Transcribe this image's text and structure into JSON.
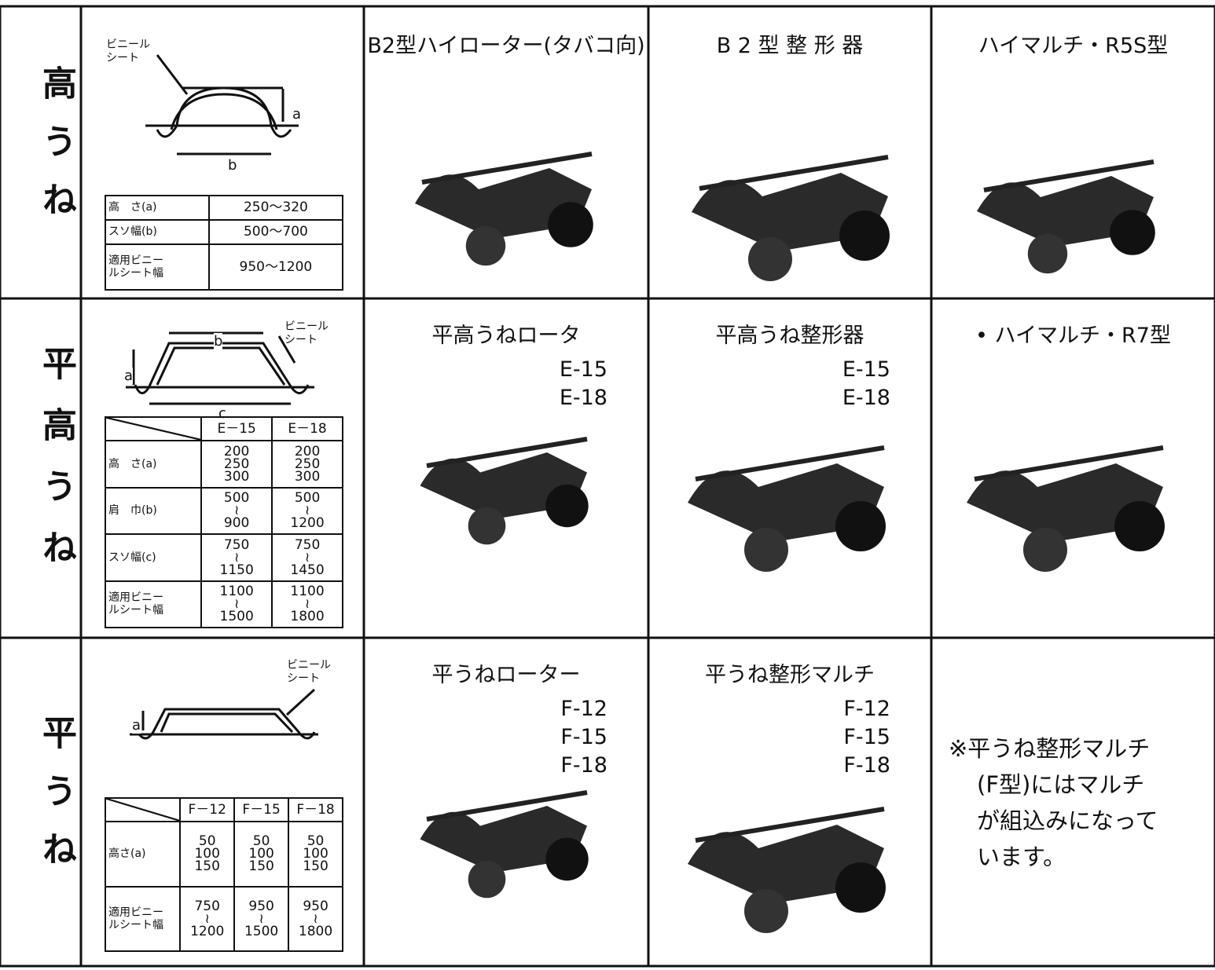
{
  "table": {
    "rows": [
      {
        "label": "高うね",
        "diagram": {
          "sheet_label": [
            "ビニール",
            "シート"
          ],
          "dimensions": [
            "a",
            "b"
          ]
        },
        "spec": {
          "rows": [
            {
              "item": [
                "高　さ(a)"
              ],
              "values": [
                [
                  "250〜320"
                ]
              ]
            },
            {
              "item": [
                "スソ幅(b)"
              ],
              "values": [
                [
                  "500〜700"
                ]
              ]
            },
            {
              "item": [
                "適用ビニー",
                "ルシート幅"
              ],
              "values": [
                [
                  "950〜1200"
                ]
              ]
            }
          ]
        },
        "machines": [
          {
            "name": "B2型ハイローター(タバコ向)"
          },
          {
            "name": "B 2 型 整 形 器"
          },
          {
            "name": "ハイマルチ・R5S型"
          }
        ]
      },
      {
        "label": "平高うね",
        "diagram": {
          "sheet_label": [
            "ビニール",
            "シート"
          ],
          "dimensions": [
            "a",
            "b",
            "c"
          ]
        },
        "spec": {
          "header": [
            "E－15",
            "E－18"
          ],
          "rows": [
            {
              "item": [
                "高　さ(a)"
              ],
              "values": [
                [
                  "200",
                  "250",
                  "300"
                ],
                [
                  "200",
                  "250",
                  "300"
                ]
              ]
            },
            {
              "item": [
                "肩　巾(b)"
              ],
              "values": [
                [
                  "500",
                  "≀",
                  "900"
                ],
                [
                  "500",
                  "≀",
                  "1200"
                ]
              ]
            },
            {
              "item": [
                "スソ幅(c)"
              ],
              "values": [
                [
                  "750",
                  "≀",
                  "1150"
                ],
                [
                  "750",
                  "≀",
                  "1450"
                ]
              ]
            },
            {
              "item": [
                "適用ビニー",
                "ルシート幅"
              ],
              "values": [
                [
                  "1100",
                  "≀",
                  "1500"
                ],
                [
                  "1100",
                  "≀",
                  "1800"
                ]
              ]
            }
          ]
        },
        "machines": [
          {
            "name": "平高うねロータ",
            "models": [
              "E-15",
              "E-18"
            ]
          },
          {
            "name": "平高うね整形器",
            "models": [
              "E-15",
              "E-18"
            ]
          },
          {
            "name": "• ハイマルチ・R7型"
          }
        ]
      },
      {
        "label": "平うね",
        "diagram": {
          "sheet_label": [
            "ビニール",
            "シート"
          ],
          "dimensions": [
            "a"
          ]
        },
        "spec": {
          "header": [
            "F－12",
            "F－15",
            "F－18"
          ],
          "rows": [
            {
              "item": [
                "高さ(a)"
              ],
              "values": [
                [
                  "50",
                  "100",
                  "150"
                ],
                [
                  "50",
                  "100",
                  "150"
                ],
                [
                  "50",
                  "100",
                  "150"
                ]
              ]
            },
            {
              "item": [
                "適用ビニー",
                "ルシート幅"
              ],
              "values": [
                [
                  "750",
                  "≀",
                  "1200"
                ],
                [
                  "950",
                  "≀",
                  "1500"
                ],
                [
                  "950",
                  "≀",
                  "1800"
                ]
              ]
            }
          ]
        },
        "machines": [
          {
            "name": "平うねローター",
            "models": [
              "F-12",
              "F-15",
              "F-18"
            ]
          },
          {
            "name": "平うね整形マルチ",
            "models": [
              "F-12",
              "F-15",
              "F-18"
            ]
          },
          {
            "note": [
              "※平うね整形マルチ",
              "(F型)にはマルチ",
              "が組込みになって",
              "います。"
            ]
          }
        ]
      }
    ]
  }
}
